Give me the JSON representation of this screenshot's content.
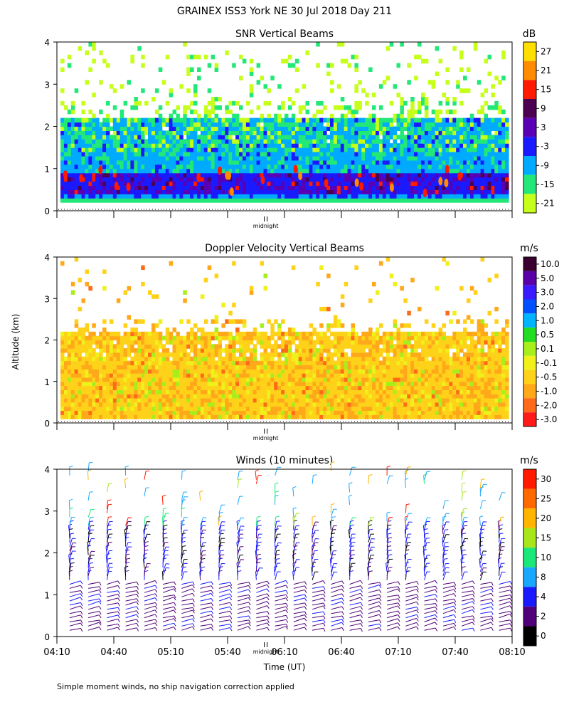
{
  "figure": {
    "title": "GRAINEX ISS3 York NE  30 Jul 2018 Day 211",
    "ylabel": "Altitude (km)",
    "xlabel": "Time (UT)",
    "footnote": "Simple moment winds, no ship navigation correction applied",
    "midnight_label": "midnight"
  },
  "chart_data": [
    {
      "type": "heatmap",
      "title": "SNR Vertical Beams",
      "ylabel": "Altitude (km)",
      "ylim": [
        0,
        4
      ],
      "yticks": [
        "0",
        "1",
        "2",
        "3",
        "4"
      ],
      "colorbar": {
        "unit": "dB",
        "labels": [
          "27",
          "21",
          "15",
          "9",
          "3",
          "-3",
          "-9",
          "-15",
          "-21"
        ],
        "colors": [
          "#ffdf00",
          "#ff8c00",
          "#ff1a00",
          "#4b0052",
          "#5a00b4",
          "#1a1aff",
          "#00aaff",
          "#22e878",
          "#c6ff1a"
        ]
      },
      "layers": [
        {
          "alt_km": "0.3-0.9",
          "value_db": "3 to 9"
        },
        {
          "alt_km": "0.9-1.4",
          "value_db": "-9 to -3"
        },
        {
          "alt_km": "1.4-2.2",
          "value_db": "-15 to -9"
        },
        {
          "alt_km": "2.2-4.0",
          "value_db": "-21 sparse"
        }
      ]
    },
    {
      "type": "heatmap",
      "title": "Doppler Velocity Vertical Beams",
      "ylabel": "Altitude (km)",
      "ylim": [
        0,
        4
      ],
      "yticks": [
        "0",
        "1",
        "2",
        "3",
        "4"
      ],
      "colorbar": {
        "unit": "m/s",
        "labels": [
          "10.0",
          "5.0",
          "3.0",
          "2.0",
          "1.0",
          "0.5",
          "0.1",
          "-0.1",
          "-0.5",
          "-1.0",
          "-2.0",
          "-3.0"
        ],
        "colors": [
          "#3a0030",
          "#5a00a8",
          "#3a1aff",
          "#0050ff",
          "#00b4ff",
          "#22dd22",
          "#a8ee1a",
          "#f0f01a",
          "#ffd21a",
          "#ffa81a",
          "#ff6a1a",
          "#ff1a1a"
        ]
      },
      "layers": [
        {
          "alt_km": "0.1-2.2",
          "value_ms": "-0.5 to -0.1"
        },
        {
          "alt_km": "2.2-4.0",
          "value_ms": "sparse"
        }
      ]
    },
    {
      "type": "scatter",
      "title": "Winds (10 minutes)",
      "ylabel": "Altitude (km)",
      "ylim": [
        0,
        4
      ],
      "yticks": [
        "0",
        "1",
        "2",
        "3",
        "4"
      ],
      "x": [
        "04:10",
        "04:40",
        "05:10",
        "05:40",
        "06:10",
        "06:40",
        "07:10",
        "07:40",
        "08:10"
      ],
      "xlabel": "Time (UT)",
      "colorbar": {
        "unit": "m/s",
        "labels": [
          "30",
          "25",
          "20",
          "15",
          "10",
          "8",
          "4",
          "2",
          "0"
        ],
        "colors": [
          "#ff1a00",
          "#ff6a00",
          "#ffb400",
          "#a8e61a",
          "#1ae878",
          "#1aa8ff",
          "#1a1aff",
          "#500078",
          "#000000"
        ]
      },
      "wind_profiles_per_hour": 6,
      "speed_by_altitude": [
        {
          "alt_km": "0-1.3",
          "speed_ms": "2 to 4"
        },
        {
          "alt_km": "1.3-2.6",
          "speed_ms": "4 to 8"
        },
        {
          "alt_km": "2.6-4.0",
          "speed_ms": "8 to 30"
        }
      ]
    }
  ]
}
